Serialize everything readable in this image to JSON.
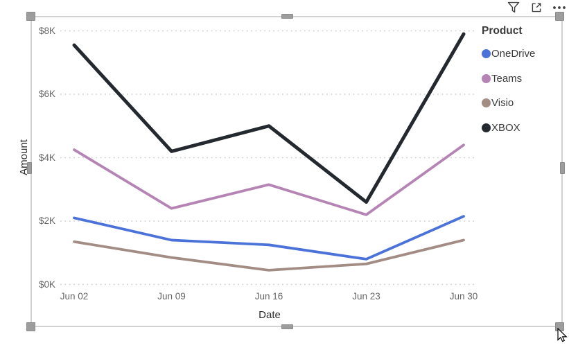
{
  "visual_toolbar": {
    "icons": [
      {
        "name": "filter",
        "label": "Filter"
      },
      {
        "name": "focus-mode",
        "label": "Focus mode"
      },
      {
        "name": "more-options",
        "label": "More options"
      }
    ]
  },
  "chart_data": {
    "type": "line",
    "title": "",
    "xlabel": "Date",
    "ylabel": "Amount",
    "legend_title": "Product",
    "legend_position": "right",
    "grid": "horizontal-dotted",
    "x": [
      "Jun 02",
      "Jun 09",
      "Jun 16",
      "Jun 23",
      "Jun 30"
    ],
    "y_ticks": [
      {
        "label": "$0K",
        "value": 0
      },
      {
        "label": "$2K",
        "value": 2000
      },
      {
        "label": "$4K",
        "value": 4000
      },
      {
        "label": "$6K",
        "value": 6000
      },
      {
        "label": "$8K",
        "value": 8000
      }
    ],
    "ylim": [
      0,
      8000
    ],
    "series": [
      {
        "name": "OneDrive",
        "color": "#4A72D8",
        "values": [
          2100,
          1400,
          1250,
          800,
          2150
        ]
      },
      {
        "name": "Teams",
        "color": "#B584B4",
        "values": [
          4250,
          2400,
          3150,
          2200,
          4400
        ]
      },
      {
        "name": "Visio",
        "color": "#A38C84",
        "values": [
          1350,
          850,
          450,
          650,
          1400
        ]
      },
      {
        "name": "XBOX",
        "color": "#23292E",
        "values": [
          7550,
          4200,
          5000,
          2600,
          7900
        ]
      }
    ]
  },
  "colors": {
    "gridline": "#CFCFCF",
    "tick_label": "#666666",
    "axis_title": "#2B2B2B",
    "legend_text": "#3B3B3B",
    "selection_border": "#D2D2D2",
    "selection_handle": "#9D9D9D",
    "toolbar_icon": "#3E3E3E"
  }
}
